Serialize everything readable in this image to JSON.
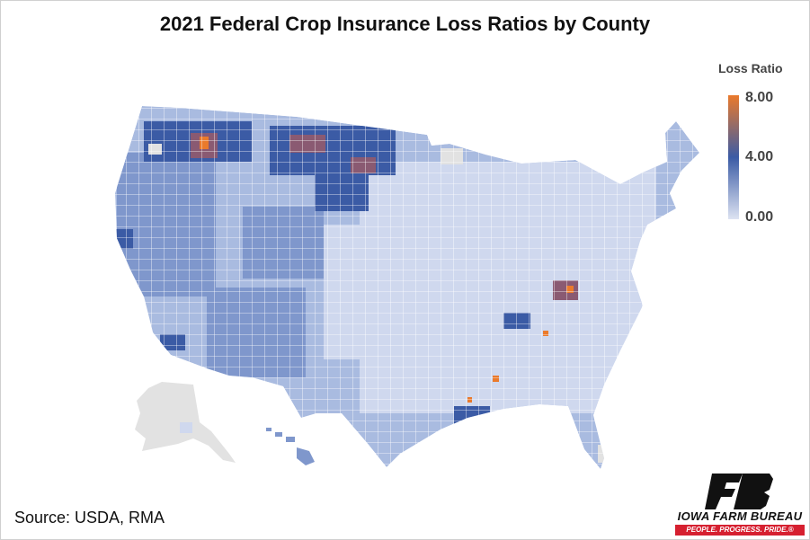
{
  "title": "2021 Federal Crop Insurance Loss Ratios by County",
  "legend": {
    "title": "Loss Ratio",
    "max_label": "8.00",
    "mid_label": "4.00",
    "min_label": "0.00",
    "colors": [
      "#dde3f2",
      "#3b5ba5",
      "#ea7a2c"
    ]
  },
  "source": "Source: USDA, RMA",
  "logo": {
    "name": "IOWA FARM BUREAU",
    "slogan": "PEOPLE. PROGRESS. PRIDE.®",
    "brand_color": "#d62030",
    "mark_color": "#111111"
  },
  "map_colors": {
    "base": "#a9bbe0",
    "light": "#cfd8ee",
    "medium": "#7f97cc",
    "dark": "#3b5ba5",
    "high": "#8a5a72",
    "extreme": "#ea7a2c",
    "no_data": "#e2e2e2",
    "border": "#ffffff"
  }
}
